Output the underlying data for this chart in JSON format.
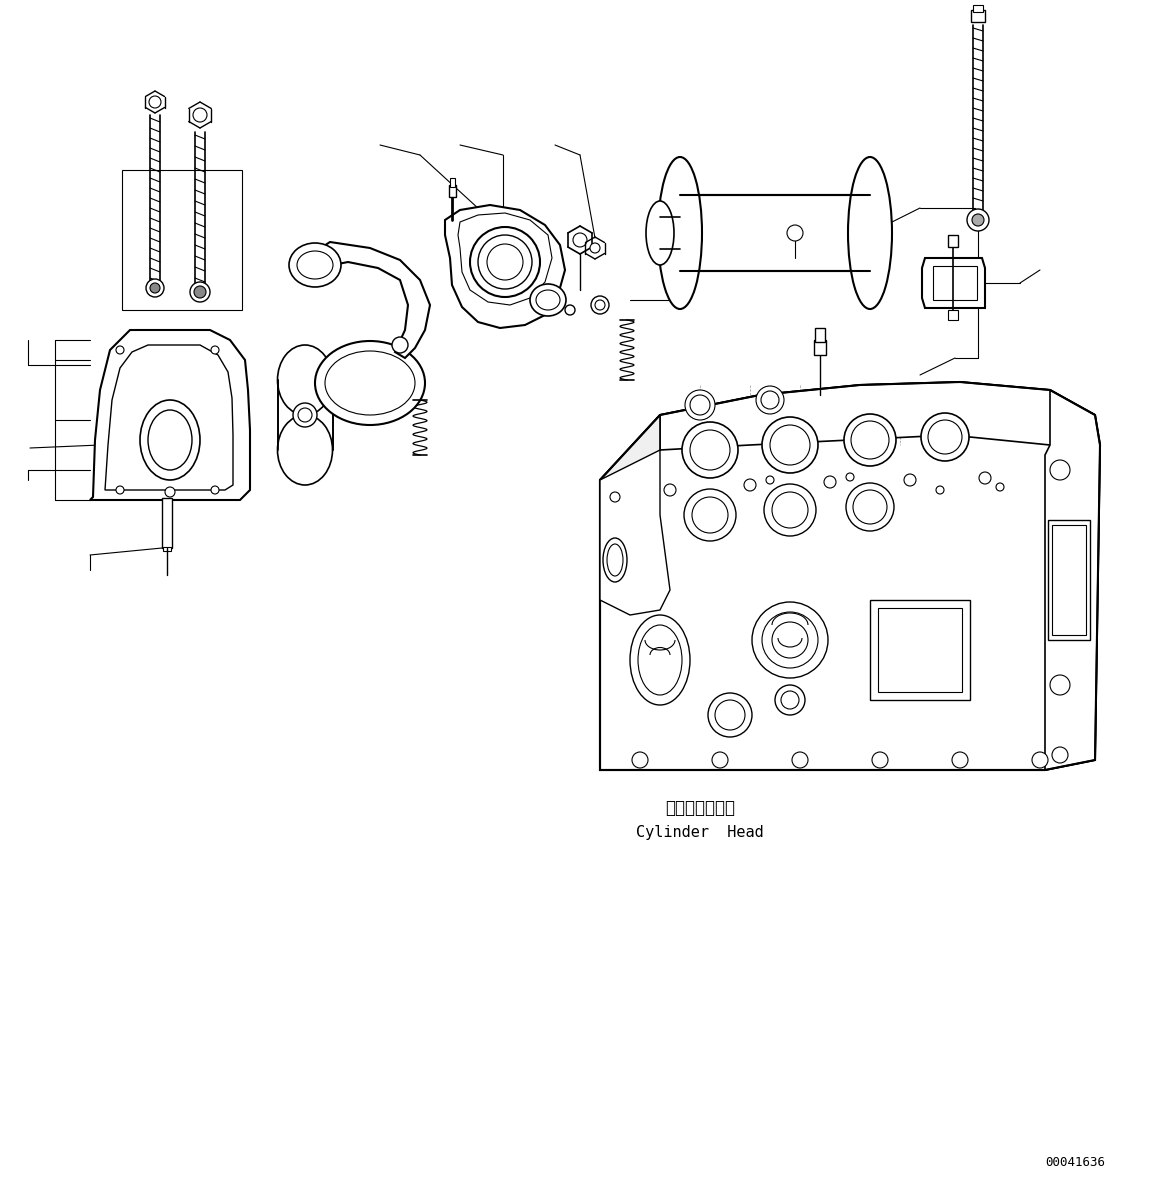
{
  "background_color": "#ffffff",
  "line_color": "#000000",
  "label_jp": "シリンダヘッド",
  "label_en": "Cylinder  Head",
  "part_number": "00041636",
  "fig_width": 11.63,
  "fig_height": 11.87,
  "dpi": 100
}
